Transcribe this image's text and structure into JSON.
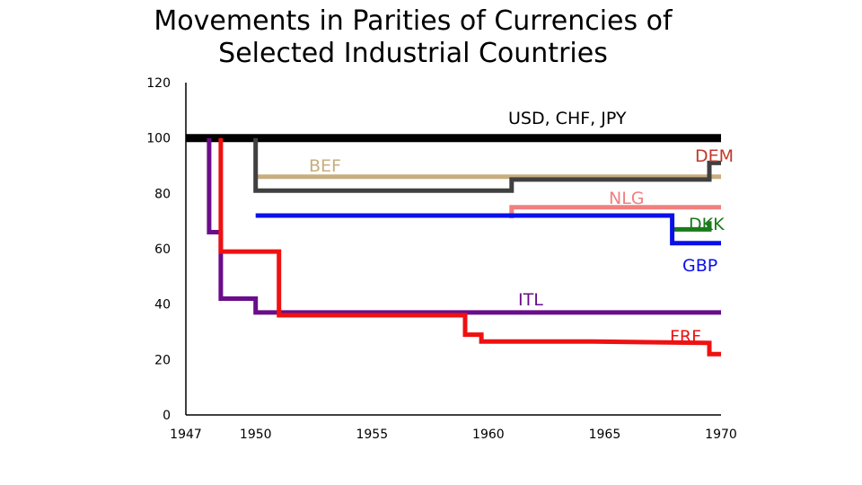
{
  "chart_data": {
    "type": "line",
    "title": [
      "Movements in Parities of Currencies of",
      "Selected Industrial Countries"
    ],
    "xlabel": "",
    "ylabel": "",
    "xlim": [
      1947,
      1970
    ],
    "ylim": [
      0,
      120
    ],
    "x_ticks": [
      "1947",
      "1950",
      "1955",
      "1960",
      "1965",
      "1970"
    ],
    "y_ticks": [
      "0",
      "20",
      "40",
      "60",
      "80",
      "100",
      "120"
    ],
    "grid": false,
    "legend": "none; series labeled directly on the plot",
    "series": [
      {
        "name": "USD, CHF, JPY",
        "color": "#000000",
        "points": [
          [
            1947,
            100
          ],
          [
            1970,
            100
          ]
        ]
      },
      {
        "name": "BEF",
        "color": "#c8ad7f",
        "points": [
          [
            1950,
            86
          ],
          [
            1970,
            86
          ]
        ]
      },
      {
        "name": "DEM",
        "color": "#404040",
        "points": [
          [
            1950,
            100
          ],
          [
            1950,
            81
          ],
          [
            1961,
            81
          ],
          [
            1961,
            85
          ],
          [
            1969.5,
            85
          ],
          [
            1969.5,
            91
          ],
          [
            1970,
            91
          ]
        ]
      },
      {
        "name": "NLG",
        "color": "#f08080",
        "points": [
          [
            1961,
            71
          ],
          [
            1961,
            75
          ],
          [
            1970,
            75
          ]
        ]
      },
      {
        "name": "DKK",
        "color": "#1a7a1a",
        "points": [
          [
            1967.9,
            67
          ],
          [
            1969.5,
            67
          ],
          [
            1969.5,
            70
          ]
        ]
      },
      {
        "name": "GBP",
        "color": "#0a10e8",
        "points": [
          [
            1950,
            72
          ],
          [
            1967.9,
            72
          ],
          [
            1967.9,
            62
          ],
          [
            1970,
            62
          ]
        ]
      },
      {
        "name": "ITL",
        "color": "#6a0d8a",
        "points": [
          [
            1948,
            100
          ],
          [
            1948,
            66
          ],
          [
            1948.5,
            66
          ],
          [
            1948.5,
            42
          ],
          [
            1950,
            42
          ],
          [
            1950,
            37
          ],
          [
            1970,
            37
          ]
        ]
      },
      {
        "name": "FRF",
        "color": "#ee1111",
        "points": [
          [
            1948.5,
            100
          ],
          [
            1948.5,
            59
          ],
          [
            1951,
            59
          ],
          [
            1951,
            36
          ],
          [
            1959,
            36
          ],
          [
            1959,
            29
          ],
          [
            1959.7,
            29
          ],
          [
            1959.7,
            26.5
          ],
          [
            1964.5,
            26.5
          ],
          [
            1969.5,
            26
          ],
          [
            1969.5,
            22
          ],
          [
            1970,
            22
          ]
        ]
      }
    ]
  }
}
